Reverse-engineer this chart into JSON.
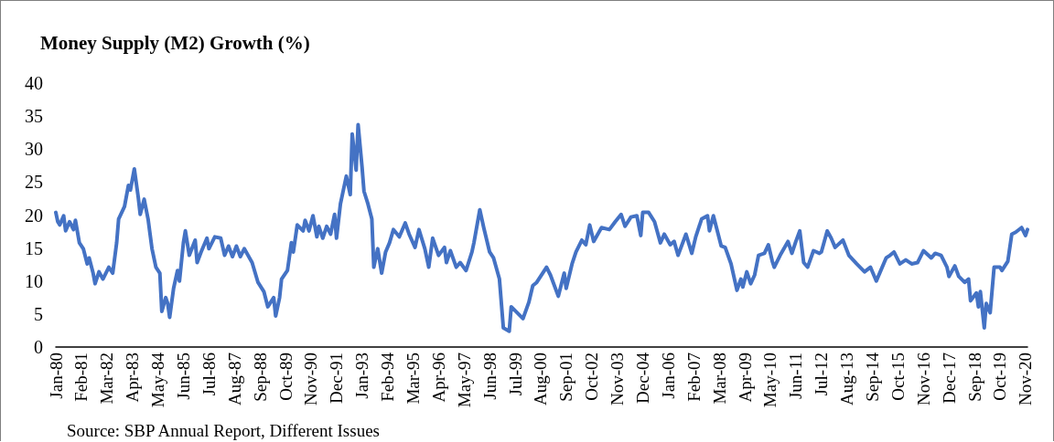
{
  "chart_data": {
    "type": "line",
    "title": "Money Supply (M2) Growth (%)",
    "annotations": [
      "Source: SBP Annual Report, Different Issues"
    ],
    "categories": [
      "Jan-80",
      null,
      null,
      null,
      null,
      null,
      null,
      null,
      null,
      null,
      null,
      null,
      null,
      "Feb-81",
      null,
      null,
      null,
      null,
      null,
      null,
      null,
      null,
      null,
      null,
      null,
      null,
      "Mar-82",
      null,
      null,
      null,
      null,
      null,
      null,
      null,
      null,
      null,
      null,
      null,
      null,
      "Apr-83",
      null,
      null,
      null,
      null,
      null,
      null,
      null,
      null,
      null,
      null,
      null,
      null,
      "May-84",
      null,
      null,
      null,
      null,
      null,
      null,
      null,
      null,
      null,
      null,
      null,
      null,
      "Jun-85",
      null,
      null,
      null,
      null,
      null,
      null,
      null,
      null,
      null,
      null,
      null,
      null,
      "Jul-86",
      null,
      null,
      null,
      null,
      null,
      null,
      null,
      null,
      null,
      null,
      null,
      null,
      "Aug-87",
      null,
      null,
      null,
      null,
      null,
      null,
      null,
      null,
      null,
      null,
      null,
      null,
      "Sep-88",
      null,
      null,
      null,
      null,
      null,
      null,
      null,
      null,
      null,
      null,
      null,
      null,
      "Oct-89",
      null,
      null,
      null,
      null,
      null,
      null,
      null,
      null,
      null,
      null,
      null,
      null,
      "Nov-90",
      null,
      null,
      null,
      null,
      null,
      null,
      null,
      null,
      null,
      null,
      null,
      null,
      "Dec-91",
      null,
      null,
      null,
      null,
      null,
      null,
      null,
      null,
      null,
      null,
      null,
      null,
      "Jan-93",
      null,
      null,
      null,
      null,
      null,
      null,
      null,
      null,
      null,
      null,
      null,
      null,
      "Feb-94",
      null,
      null,
      null,
      null,
      null,
      null,
      null,
      null,
      null,
      null,
      null,
      null,
      "Mar-95",
      null,
      null,
      null,
      null,
      null,
      null,
      null,
      null,
      null,
      null,
      null,
      null,
      "Apr-96",
      null,
      null,
      null,
      null,
      null,
      null,
      null,
      null,
      null,
      null,
      null,
      null,
      "May-97",
      null,
      null,
      null,
      null,
      null,
      null,
      null,
      null,
      null,
      null,
      null,
      null,
      "Jun-98",
      null,
      null,
      null,
      null,
      null,
      null,
      null,
      null,
      null,
      null,
      null,
      null,
      "Jul-99",
      null,
      null,
      null,
      null,
      null,
      null,
      null,
      null,
      null,
      null,
      null,
      null,
      "Aug-00",
      null,
      null,
      null,
      null,
      null,
      null,
      null,
      null,
      null,
      null,
      null,
      null,
      "Sep-01",
      null,
      null,
      null,
      null,
      null,
      null,
      null,
      null,
      null,
      null,
      null,
      null,
      "Oct-02",
      null,
      null,
      null,
      null,
      null,
      null,
      null,
      null,
      null,
      null,
      null,
      null,
      "Nov-03",
      null,
      null,
      null,
      null,
      null,
      null,
      null,
      null,
      null,
      null,
      null,
      null,
      "Dec-04",
      null,
      null,
      null,
      null,
      null,
      null,
      null,
      null,
      null,
      null,
      null,
      null,
      "Jan-06",
      null,
      null,
      null,
      null,
      null,
      null,
      null,
      null,
      null,
      null,
      null,
      null,
      "Feb-07",
      null,
      null,
      null,
      null,
      null,
      null,
      null,
      null,
      null,
      null,
      null,
      null,
      "Mar-08",
      null,
      null,
      null,
      null,
      null,
      null,
      null,
      null,
      null,
      null,
      null,
      null,
      "Apr-09",
      null,
      null,
      null,
      null,
      null,
      null,
      null,
      null,
      null,
      null,
      null,
      null,
      "May-10",
      null,
      null,
      null,
      null,
      null,
      null,
      null,
      null,
      null,
      null,
      null,
      null,
      "Jun-11",
      null,
      null,
      null,
      null,
      null,
      null,
      null,
      null,
      null,
      null,
      null,
      null,
      "Jul-12",
      null,
      null,
      null,
      null,
      null,
      null,
      null,
      null,
      null,
      null,
      null,
      null,
      "Aug-13",
      null,
      null,
      null,
      null,
      null,
      null,
      null,
      null,
      null,
      null,
      null,
      null,
      "Sep-14",
      null,
      null,
      null,
      null,
      null,
      null,
      null,
      null,
      null,
      null,
      null,
      null,
      "Oct-15",
      null,
      null,
      null,
      null,
      null,
      null,
      null,
      null,
      null,
      null,
      null,
      null,
      "Nov-16",
      null,
      null,
      null,
      null,
      null,
      null,
      null,
      null,
      null,
      null,
      null,
      null,
      "Dec-17",
      null,
      null,
      null,
      null,
      null,
      null,
      null,
      null,
      null,
      null,
      null,
      null,
      "Sep-18",
      null,
      null,
      null,
      null,
      null,
      null,
      null,
      null,
      null,
      null,
      null,
      null,
      "Oct-19",
      null,
      null,
      null,
      null,
      null,
      null,
      null,
      null,
      null,
      null,
      null,
      null,
      "Nov-20",
      null
    ],
    "ylim": [
      0,
      40
    ],
    "yticks": [
      0,
      5,
      10,
      15,
      20,
      25,
      30,
      35,
      40
    ],
    "grid": false,
    "marker": "none",
    "line_style": "solid",
    "series": [
      {
        "color": "#4472c4",
        "values": [
          20.4,
          19.0,
          18.5,
          null,
          19.9,
          17.6,
          null,
          19.0,
          null,
          17.8,
          19.2,
          null,
          15.8,
          null,
          14.9,
          null,
          12.6,
          13.5,
          null,
          11.2,
          9.6,
          null,
          11.4,
          null,
          10.3,
          null,
          null,
          12.1,
          null,
          11.2,
          null,
          15.8,
          19.4,
          null,
          null,
          21.3,
          null,
          24.5,
          23.8,
          null,
          27.0,
          null,
          22.7,
          20.1,
          null,
          22.4,
          null,
          19.4,
          null,
          14.9,
          null,
          12.1,
          null,
          11.2,
          5.4,
          null,
          7.5,
          6.6,
          4.5,
          null,
          8.9,
          null,
          11.6,
          10.0,
          null,
          15.8,
          17.6,
          null,
          13.9,
          null,
          null,
          16.2,
          12.8,
          null,
          14.4,
          null,
          null,
          16.5,
          14.9,
          null,
          null,
          16.7,
          null,
          null,
          16.5,
          null,
          13.9,
          null,
          15.3,
          null,
          13.7,
          null,
          15.3,
          null,
          13.7,
          null,
          14.9,
          null,
          null,
          null,
          12.8,
          null,
          null,
          9.8,
          null,
          null,
          8.4,
          null,
          6.1,
          null,
          null,
          7.5,
          4.7,
          null,
          7.5,
          10.3,
          null,
          null,
          11.6,
          null,
          15.8,
          14.4,
          null,
          18.5,
          null,
          null,
          17.6,
          19.2,
          null,
          17.6,
          null,
          19.9,
          null,
          16.7,
          18.3,
          null,
          16.5,
          null,
          18.3,
          null,
          17.1,
          null,
          20.1,
          16.5,
          null,
          21.7,
          23.1,
          null,
          25.9,
          null,
          23.1,
          32.3,
          null,
          26.8,
          33.7,
          null,
          27.3,
          23.6,
          null,
          21.7,
          null,
          19.4,
          12.1,
          null,
          14.9,
          null,
          11.2,
          null,
          14.4,
          null,
          15.8,
          null,
          17.8,
          null,
          null,
          16.7,
          null,
          null,
          18.8,
          null,
          17.1,
          null,
          null,
          15.1,
          null,
          17.8,
          null,
          null,
          14.9,
          null,
          12.1,
          null,
          16.5,
          null,
          null,
          13.9,
          null,
          null,
          15.1,
          12.8,
          null,
          14.6,
          null,
          null,
          12.1,
          null,
          12.8,
          null,
          null,
          11.6,
          null,
          null,
          14.4,
          15.8,
          null,
          null,
          20.8,
          null,
          18.1,
          null,
          null,
          14.4,
          null,
          13.5,
          null,
          null,
          10.3,
          null,
          2.9,
          null,
          null,
          2.4,
          6.1,
          null,
          null,
          5.2,
          null,
          null,
          4.3,
          null,
          null,
          6.8,
          null,
          9.3,
          null,
          9.8,
          null,
          null,
          null,
          null,
          12.1,
          null,
          10.9,
          null,
          null,
          null,
          7.7,
          null,
          null,
          11.2,
          8.9,
          null,
          null,
          12.6,
          null,
          14.4,
          null,
          null,
          16.2,
          null,
          15.5,
          null,
          18.5,
          null,
          16.0,
          null,
          null,
          null,
          18.1,
          null,
          null,
          null,
          17.8,
          null,
          null,
          19.0,
          null,
          null,
          20.1,
          null,
          18.3,
          null,
          null,
          19.7,
          null,
          null,
          19.9,
          null,
          16.9,
          20.4,
          null,
          null,
          20.4,
          null,
          null,
          19.0,
          null,
          null,
          15.8,
          null,
          17.1,
          null,
          null,
          15.5,
          null,
          16.0,
          null,
          13.9,
          null,
          null,
          null,
          17.1,
          null,
          null,
          14.2,
          null,
          16.7,
          null,
          null,
          19.4,
          null,
          null,
          19.9,
          17.6,
          null,
          19.9,
          null,
          null,
          null,
          15.3,
          null,
          15.1,
          null,
          null,
          12.6,
          null,
          null,
          8.6,
          null,
          10.3,
          9.1,
          null,
          11.4,
          null,
          9.6,
          null,
          10.9,
          null,
          13.9,
          null,
          null,
          14.2,
          null,
          15.5,
          null,
          13.0,
          12.1,
          null,
          null,
          13.9,
          null,
          null,
          null,
          16.0,
          null,
          14.2,
          null,
          16.0,
          null,
          17.6,
          null,
          12.8,
          null,
          12.1,
          null,
          null,
          14.6,
          null,
          null,
          14.2,
          14.4,
          null,
          null,
          17.6,
          null,
          16.5,
          null,
          15.1,
          null,
          null,
          null,
          16.2,
          null,
          null,
          13.9,
          null,
          null,
          null,
          12.6,
          null,
          null,
          null,
          11.4,
          null,
          null,
          12.1,
          null,
          null,
          10.0,
          null,
          11.4,
          null,
          null,
          13.5,
          null,
          13.9,
          null,
          14.4,
          null,
          null,
          12.6,
          null,
          null,
          13.2,
          null,
          null,
          12.6,
          null,
          null,
          12.8,
          null,
          null,
          14.6,
          null,
          null,
          null,
          13.5,
          null,
          14.2,
          null,
          null,
          13.9,
          null,
          null,
          12.1,
          10.7,
          null,
          null,
          12.3,
          null,
          10.7,
          null,
          null,
          9.8,
          null,
          10.3,
          7.0,
          null,
          null,
          8.2,
          6.1,
          8.4,
          null,
          2.9,
          6.6,
          null,
          5.2,
          null,
          12.1,
          null,
          null,
          12.1,
          11.6,
          null,
          null,
          13.0,
          null,
          17.1,
          null,
          17.4,
          null,
          null,
          18.1,
          null,
          16.9,
          17.8
        ]
      }
    ]
  }
}
